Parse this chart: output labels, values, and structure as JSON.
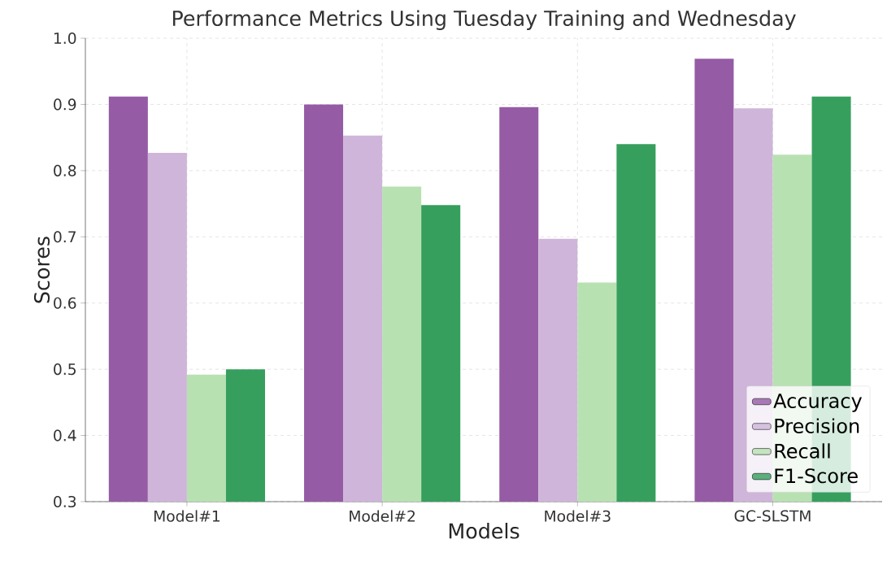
{
  "chart_data": {
    "type": "bar",
    "title": "Performance Metrics Using Tuesday Training and Wednesday",
    "xlabel": "Models",
    "ylabel": "Scores",
    "categories": [
      "Model#1",
      "Model#2",
      "Model#3",
      "GC-SLSTM"
    ],
    "series": [
      {
        "name": "Accuracy",
        "color": "#955ba5",
        "values": [
          0.912,
          0.9,
          0.896,
          0.969
        ]
      },
      {
        "name": "Precision",
        "color": "#cfb5d9",
        "values": [
          0.827,
          0.853,
          0.697,
          0.894
        ]
      },
      {
        "name": "Recall",
        "color": "#b8e1b2",
        "values": [
          0.492,
          0.776,
          0.631,
          0.824
        ]
      },
      {
        "name": "F1-Score",
        "color": "#369f5e",
        "values": [
          0.5,
          0.748,
          0.84,
          0.912
        ]
      }
    ],
    "ylim": [
      0.3,
      1.0
    ],
    "yticks": [
      0.3,
      0.4,
      0.5,
      0.6,
      0.7,
      0.8,
      0.9,
      {
        "value": 1.0,
        "label": "1.0"
      }
    ],
    "grid": true,
    "legend": "bottom right"
  }
}
